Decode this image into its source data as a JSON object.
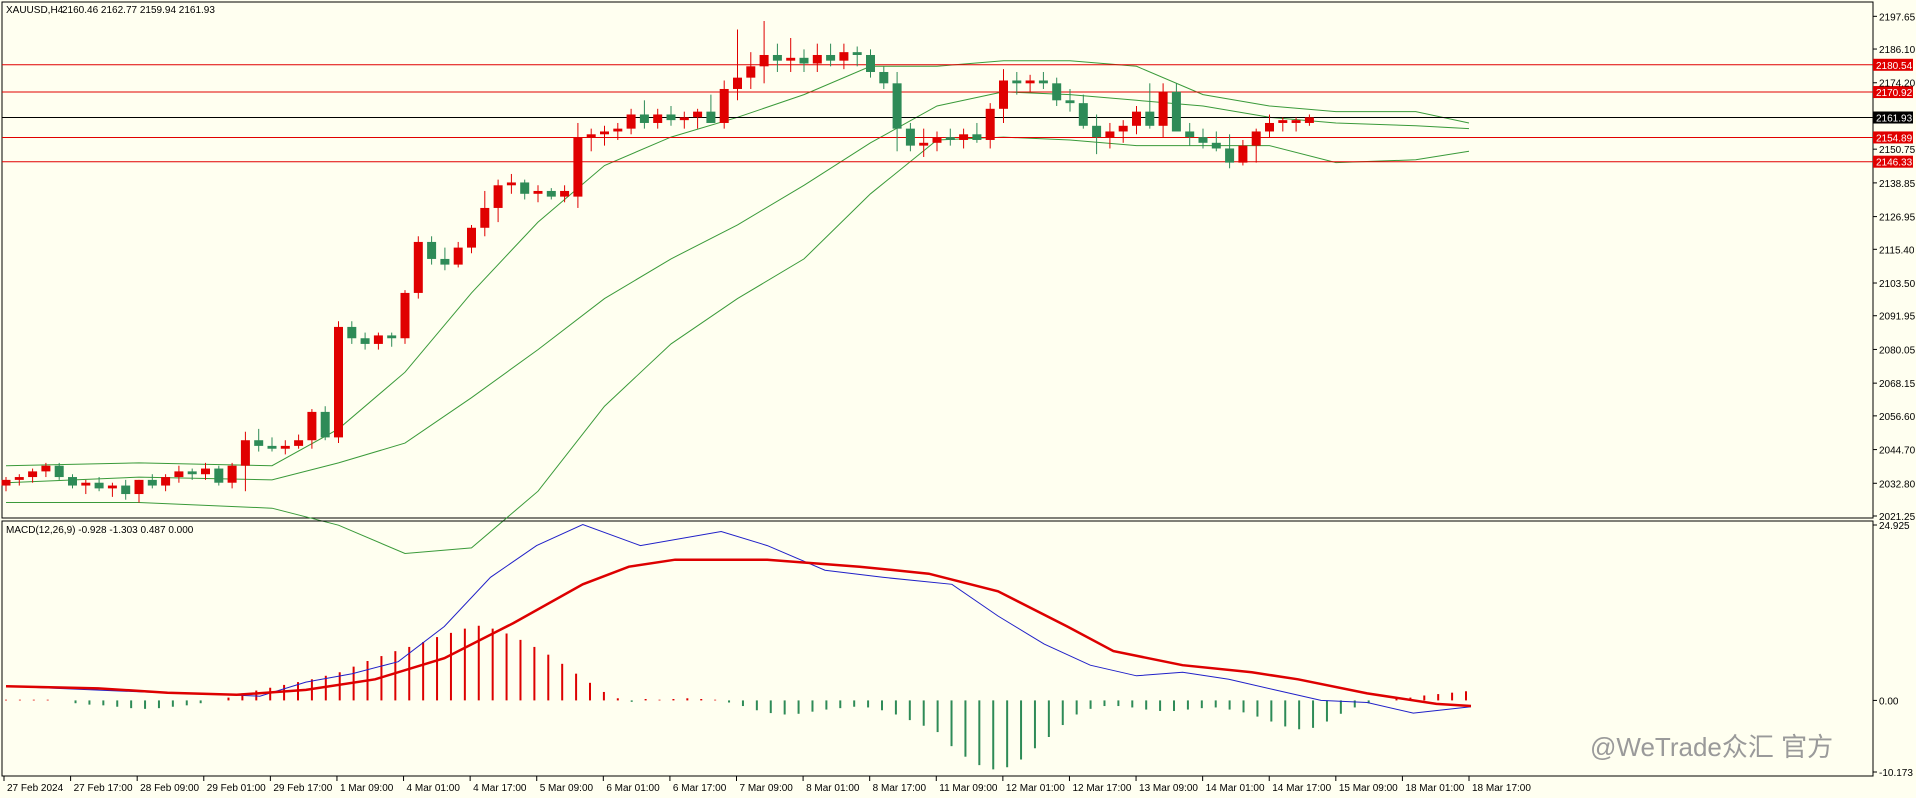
{
  "chart_data": {
    "type": "candlestick",
    "symbol_header": "XAUUSD,H4",
    "ohlc_header": [
      "2160.46",
      "2162.77",
      "2159.94",
      "2161.93"
    ],
    "price_ylim": [
      2021.25,
      2202.0
    ],
    "price_ticks": [
      "2197.65",
      "2186.10",
      "2174.20",
      "2150.75",
      "2138.85",
      "2126.95",
      "2115.40",
      "2103.50",
      "2091.95",
      "2080.05",
      "2068.15",
      "2056.60",
      "2044.70",
      "2032.80",
      "2021.25"
    ],
    "level_lines": [
      {
        "label": "2180.54",
        "value": 2180.54,
        "color": "#e00000"
      },
      {
        "label": "2170.92",
        "value": 2170.92,
        "color": "#e00000"
      },
      {
        "label": "2161.93",
        "value": 2161.93,
        "color": "#000000"
      },
      {
        "label": "2154.89",
        "value": 2154.89,
        "color": "#e00000"
      },
      {
        "label": "2146.33",
        "value": 2146.33,
        "color": "#e00000"
      }
    ],
    "x_labels": [
      "27 Feb 2024",
      "27 Feb 17:00",
      "28 Feb 09:00",
      "29 Feb 01:00",
      "29 Feb 17:00",
      "1 Mar 09:00",
      "4 Mar 01:00",
      "4 Mar 17:00",
      "5 Mar 09:00",
      "6 Mar 01:00",
      "6 Mar 17:00",
      "7 Mar 09:00",
      "8 Mar 01:00",
      "8 Mar 17:00",
      "11 Mar 09:00",
      "12 Mar 01:00",
      "12 Mar 17:00",
      "13 Mar 09:00",
      "14 Mar 01:00",
      "14 Mar 17:00",
      "15 Mar 09:00",
      "18 Mar 01:00",
      "18 Mar 17:00"
    ],
    "candles": [
      [
        2032,
        2035,
        2030,
        2034
      ],
      [
        2034,
        2036,
        2032,
        2035
      ],
      [
        2035,
        2038,
        2033,
        2037
      ],
      [
        2037,
        2040,
        2035,
        2039
      ],
      [
        2039,
        2040,
        2034,
        2035
      ],
      [
        2035,
        2036,
        2031,
        2032
      ],
      [
        2032,
        2034,
        2029,
        2033
      ],
      [
        2033,
        2035,
        2030,
        2031
      ],
      [
        2031,
        2033,
        2028,
        2032
      ],
      [
        2032,
        2034,
        2027,
        2029
      ],
      [
        2029,
        2034,
        2026,
        2034
      ],
      [
        2034,
        2036,
        2031,
        2032
      ],
      [
        2032,
        2036,
        2030,
        2035
      ],
      [
        2035,
        2039,
        2033,
        2037
      ],
      [
        2037,
        2038,
        2034,
        2036
      ],
      [
        2036,
        2040,
        2034,
        2038
      ],
      [
        2038,
        2039,
        2032,
        2033
      ],
      [
        2033,
        2040,
        2031,
        2039
      ],
      [
        2039,
        2051,
        2030,
        2048
      ],
      [
        2048,
        2052,
        2044,
        2046
      ],
      [
        2046,
        2049,
        2044,
        2045
      ],
      [
        2045,
        2048,
        2043,
        2046
      ],
      [
        2046,
        2050,
        2045,
        2048
      ],
      [
        2048,
        2059,
        2045,
        2058
      ],
      [
        2058,
        2060,
        2048,
        2049
      ],
      [
        2049,
        2090,
        2047,
        2088
      ],
      [
        2088,
        2090,
        2082,
        2084
      ],
      [
        2084,
        2086,
        2080,
        2082
      ],
      [
        2082,
        2086,
        2080,
        2085
      ],
      [
        2085,
        2086,
        2081,
        2084
      ],
      [
        2084,
        2101,
        2082,
        2100
      ],
      [
        2100,
        2120,
        2098,
        2118
      ],
      [
        2118,
        2120,
        2110,
        2112
      ],
      [
        2112,
        2116,
        2108,
        2110
      ],
      [
        2110,
        2118,
        2109,
        2116
      ],
      [
        2116,
        2124,
        2114,
        2123
      ],
      [
        2123,
        2136,
        2120,
        2130
      ],
      [
        2130,
        2140,
        2125,
        2138
      ],
      [
        2138,
        2142,
        2135,
        2139
      ],
      [
        2139,
        2140,
        2133,
        2135
      ],
      [
        2135,
        2138,
        2132,
        2136
      ],
      [
        2136,
        2137,
        2133,
        2134
      ],
      [
        2134,
        2138,
        2132,
        2136
      ],
      [
        2134,
        2160,
        2130,
        2155
      ],
      [
        2155,
        2158,
        2150,
        2156
      ],
      [
        2156,
        2159,
        2152,
        2157
      ],
      [
        2157,
        2160,
        2154,
        2158
      ],
      [
        2158,
        2165,
        2156,
        2163
      ],
      [
        2163,
        2168,
        2158,
        2160
      ],
      [
        2160,
        2165,
        2158,
        2163
      ],
      [
        2163,
        2166,
        2159,
        2161
      ],
      [
        2161,
        2164,
        2158,
        2162
      ],
      [
        2162,
        2165,
        2158,
        2164
      ],
      [
        2164,
        2170,
        2160,
        2160
      ],
      [
        2160,
        2175,
        2158,
        2172
      ],
      [
        2172,
        2193,
        2168,
        2176
      ],
      [
        2176,
        2185,
        2172,
        2180
      ],
      [
        2180,
        2196,
        2174,
        2184
      ],
      [
        2184,
        2188,
        2178,
        2182
      ],
      [
        2182,
        2190,
        2178,
        2183
      ],
      [
        2183,
        2186,
        2178,
        2181
      ],
      [
        2181,
        2188,
        2178,
        2184
      ],
      [
        2184,
        2188,
        2180,
        2182
      ],
      [
        2182,
        2188,
        2179,
        2185
      ],
      [
        2185,
        2187,
        2180,
        2184
      ],
      [
        2184,
        2186,
        2176,
        2178
      ],
      [
        2178,
        2180,
        2172,
        2174
      ],
      [
        2174,
        2178,
        2150,
        2158
      ],
      [
        2158,
        2160,
        2150,
        2152
      ],
      [
        2152,
        2158,
        2148,
        2153
      ],
      [
        2153,
        2157,
        2150,
        2155
      ],
      [
        2155,
        2158,
        2152,
        2154
      ],
      [
        2154,
        2158,
        2151,
        2156
      ],
      [
        2156,
        2160,
        2153,
        2154
      ],
      [
        2154,
        2167,
        2151,
        2165
      ],
      [
        2165,
        2179,
        2160,
        2175
      ],
      [
        2175,
        2178,
        2170,
        2174
      ],
      [
        2174,
        2177,
        2171,
        2175
      ],
      [
        2175,
        2178,
        2172,
        2174
      ],
      [
        2174,
        2176,
        2166,
        2168
      ],
      [
        2168,
        2172,
        2164,
        2167
      ],
      [
        2167,
        2170,
        2158,
        2159
      ],
      [
        2159,
        2163,
        2149,
        2155
      ],
      [
        2155,
        2160,
        2151,
        2157
      ],
      [
        2157,
        2161,
        2153,
        2159
      ],
      [
        2159,
        2166,
        2156,
        2164
      ],
      [
        2164,
        2174,
        2158,
        2159
      ],
      [
        2159,
        2174,
        2155,
        2171
      ],
      [
        2171,
        2174,
        2158,
        2157
      ],
      [
        2157,
        2160,
        2152,
        2155
      ],
      [
        2155,
        2158,
        2151,
        2153
      ],
      [
        2153,
        2157,
        2150,
        2151
      ],
      [
        2151,
        2156,
        2144,
        2146
      ],
      [
        2146,
        2154,
        2145,
        2152
      ],
      [
        2152,
        2158,
        2146,
        2157
      ],
      [
        2157,
        2163,
        2155,
        2160
      ],
      [
        2160,
        2162,
        2157,
        2161
      ],
      [
        2160,
        2162,
        2157,
        2161
      ],
      [
        2160,
        2163,
        2159,
        2162
      ]
    ],
    "bollinger": {
      "upper": [
        [
          0,
          2039
        ],
        [
          10,
          2040
        ],
        [
          20,
          2039
        ],
        [
          25,
          2052
        ],
        [
          30,
          2072
        ],
        [
          35,
          2100
        ],
        [
          40,
          2125
        ],
        [
          45,
          2145
        ],
        [
          50,
          2155
        ],
        [
          55,
          2162
        ],
        [
          60,
          2170
        ],
        [
          65,
          2180
        ],
        [
          70,
          2180
        ],
        [
          75,
          2182
        ],
        [
          80,
          2182
        ],
        [
          85,
          2180
        ],
        [
          90,
          2170
        ],
        [
          95,
          2166
        ],
        [
          100,
          2164
        ],
        [
          106,
          2164
        ],
        [
          110,
          2160
        ]
      ],
      "middle": [
        [
          0,
          2033
        ],
        [
          10,
          2035
        ],
        [
          20,
          2034
        ],
        [
          25,
          2040
        ],
        [
          30,
          2047
        ],
        [
          35,
          2063
        ],
        [
          40,
          2080
        ],
        [
          45,
          2098
        ],
        [
          50,
          2112
        ],
        [
          55,
          2124
        ],
        [
          60,
          2138
        ],
        [
          65,
          2153
        ],
        [
          70,
          2166
        ],
        [
          75,
          2171
        ],
        [
          80,
          2170
        ],
        [
          85,
          2168
        ],
        [
          90,
          2166
        ],
        [
          95,
          2162
        ],
        [
          100,
          2160
        ],
        [
          106,
          2159
        ],
        [
          110,
          2158
        ]
      ],
      "lower": [
        [
          0,
          2026
        ],
        [
          10,
          2026
        ],
        [
          20,
          2024
        ],
        [
          25,
          2018
        ],
        [
          30,
          2008
        ],
        [
          35,
          2010
        ],
        [
          40,
          2030
        ],
        [
          45,
          2060
        ],
        [
          50,
          2082
        ],
        [
          55,
          2098
        ],
        [
          60,
          2112
        ],
        [
          65,
          2135
        ],
        [
          70,
          2154
        ],
        [
          75,
          2155
        ],
        [
          80,
          2154
        ],
        [
          85,
          2152
        ],
        [
          90,
          2152
        ],
        [
          95,
          2152
        ],
        [
          100,
          2146
        ],
        [
          106,
          2147
        ],
        [
          110,
          2150
        ]
      ]
    },
    "macd_header": "MACD(12,26,9) -0.928 -1.303 0.487 0.000",
    "macd_ylim": [
      -10.173,
      24.925
    ],
    "macd_ticks": [
      "24.925",
      "0.00",
      "-10.173"
    ],
    "macd_line": [
      [
        0,
        2.0
      ],
      [
        6,
        1.6
      ],
      [
        12,
        1.2
      ],
      [
        18,
        0.9
      ],
      [
        22,
        0.6
      ],
      [
        26,
        2.6
      ],
      [
        30,
        3.8
      ],
      [
        34,
        5.5
      ],
      [
        38,
        10.5
      ],
      [
        42,
        17.5
      ],
      [
        46,
        22.0
      ],
      [
        50,
        25.0
      ],
      [
        55,
        22.0
      ],
      [
        62,
        24.0
      ],
      [
        66,
        22.0
      ],
      [
        71,
        18.5
      ],
      [
        76,
        17.5
      ],
      [
        82,
        16.5
      ],
      [
        86,
        12.0
      ],
      [
        90,
        8.0
      ],
      [
        94,
        5.0
      ],
      [
        98,
        3.5
      ],
      [
        102,
        4.0
      ],
      [
        106,
        3.0
      ],
      [
        110,
        1.5
      ],
      [
        114,
        0.0
      ],
      [
        118,
        -0.3
      ],
      [
        122,
        -1.8
      ],
      [
        127,
        -0.9
      ]
    ],
    "signal_line": [
      [
        0,
        2.0
      ],
      [
        8,
        1.7
      ],
      [
        14,
        1.1
      ],
      [
        20,
        0.8
      ],
      [
        26,
        1.5
      ],
      [
        32,
        3.0
      ],
      [
        38,
        6.0
      ],
      [
        44,
        11.0
      ],
      [
        50,
        16.5
      ],
      [
        54,
        19.0
      ],
      [
        58,
        20.0
      ],
      [
        66,
        20.0
      ],
      [
        74,
        19.0
      ],
      [
        80,
        18.0
      ],
      [
        86,
        15.5
      ],
      [
        92,
        10.5
      ],
      [
        96,
        7.0
      ],
      [
        102,
        5.0
      ],
      [
        108,
        4.0
      ],
      [
        112,
        3.0
      ],
      [
        118,
        1.0
      ],
      [
        124,
        -0.5
      ],
      [
        127,
        -0.8
      ]
    ],
    "histogram": [
      0.1,
      0.1,
      0.1,
      0.1,
      0.0,
      -0.4,
      -0.6,
      -0.7,
      -0.9,
      -1.1,
      -1.2,
      -1.1,
      -0.9,
      -0.7,
      -0.4,
      0.0,
      0.4,
      1.0,
      1.4,
      1.8,
      2.2,
      2.6,
      3.0,
      3.5,
      4.0,
      4.8,
      5.6,
      6.3,
      7.0,
      7.6,
      8.3,
      9.0,
      9.6,
      10.2,
      10.6,
      10.2,
      9.5,
      8.6,
      7.6,
      6.5,
      5.2,
      3.8,
      2.5,
      1.2,
      0.3,
      -0.2,
      0.2,
      0.1,
      0.2,
      0.3,
      0.2,
      0.1,
      -0.3,
      -0.8,
      -1.4,
      -1.8,
      -2.0,
      -1.9,
      -1.6,
      -1.3,
      -1.1,
      -0.9,
      -1.0,
      -1.4,
      -2.0,
      -2.8,
      -3.6,
      -4.5,
      -6.5,
      -8.0,
      -9.2,
      -9.8,
      -9.5,
      -8.4,
      -6.8,
      -5.2,
      -3.5,
      -2.0,
      -1.2,
      -0.8,
      -0.8,
      -1.0,
      -1.3,
      -1.5,
      -1.5,
      -1.3,
      -1.1,
      -1.0,
      -1.3,
      -1.7,
      -2.3,
      -3.0,
      -3.7,
      -4.1,
      -3.9,
      -3.0,
      -1.9,
      -1.0,
      -0.4,
      0.0,
      0.2,
      0.4,
      0.7,
      0.9,
      1.1,
      1.3
    ],
    "colors": {
      "bull": "#e00000",
      "bear": "#2e8b57",
      "bands": "#3a9a3a",
      "macd": "#2020c8",
      "signal": "#dd0000",
      "background": "#fffff0"
    }
  },
  "watermark": "@WeTrade众汇 官方"
}
